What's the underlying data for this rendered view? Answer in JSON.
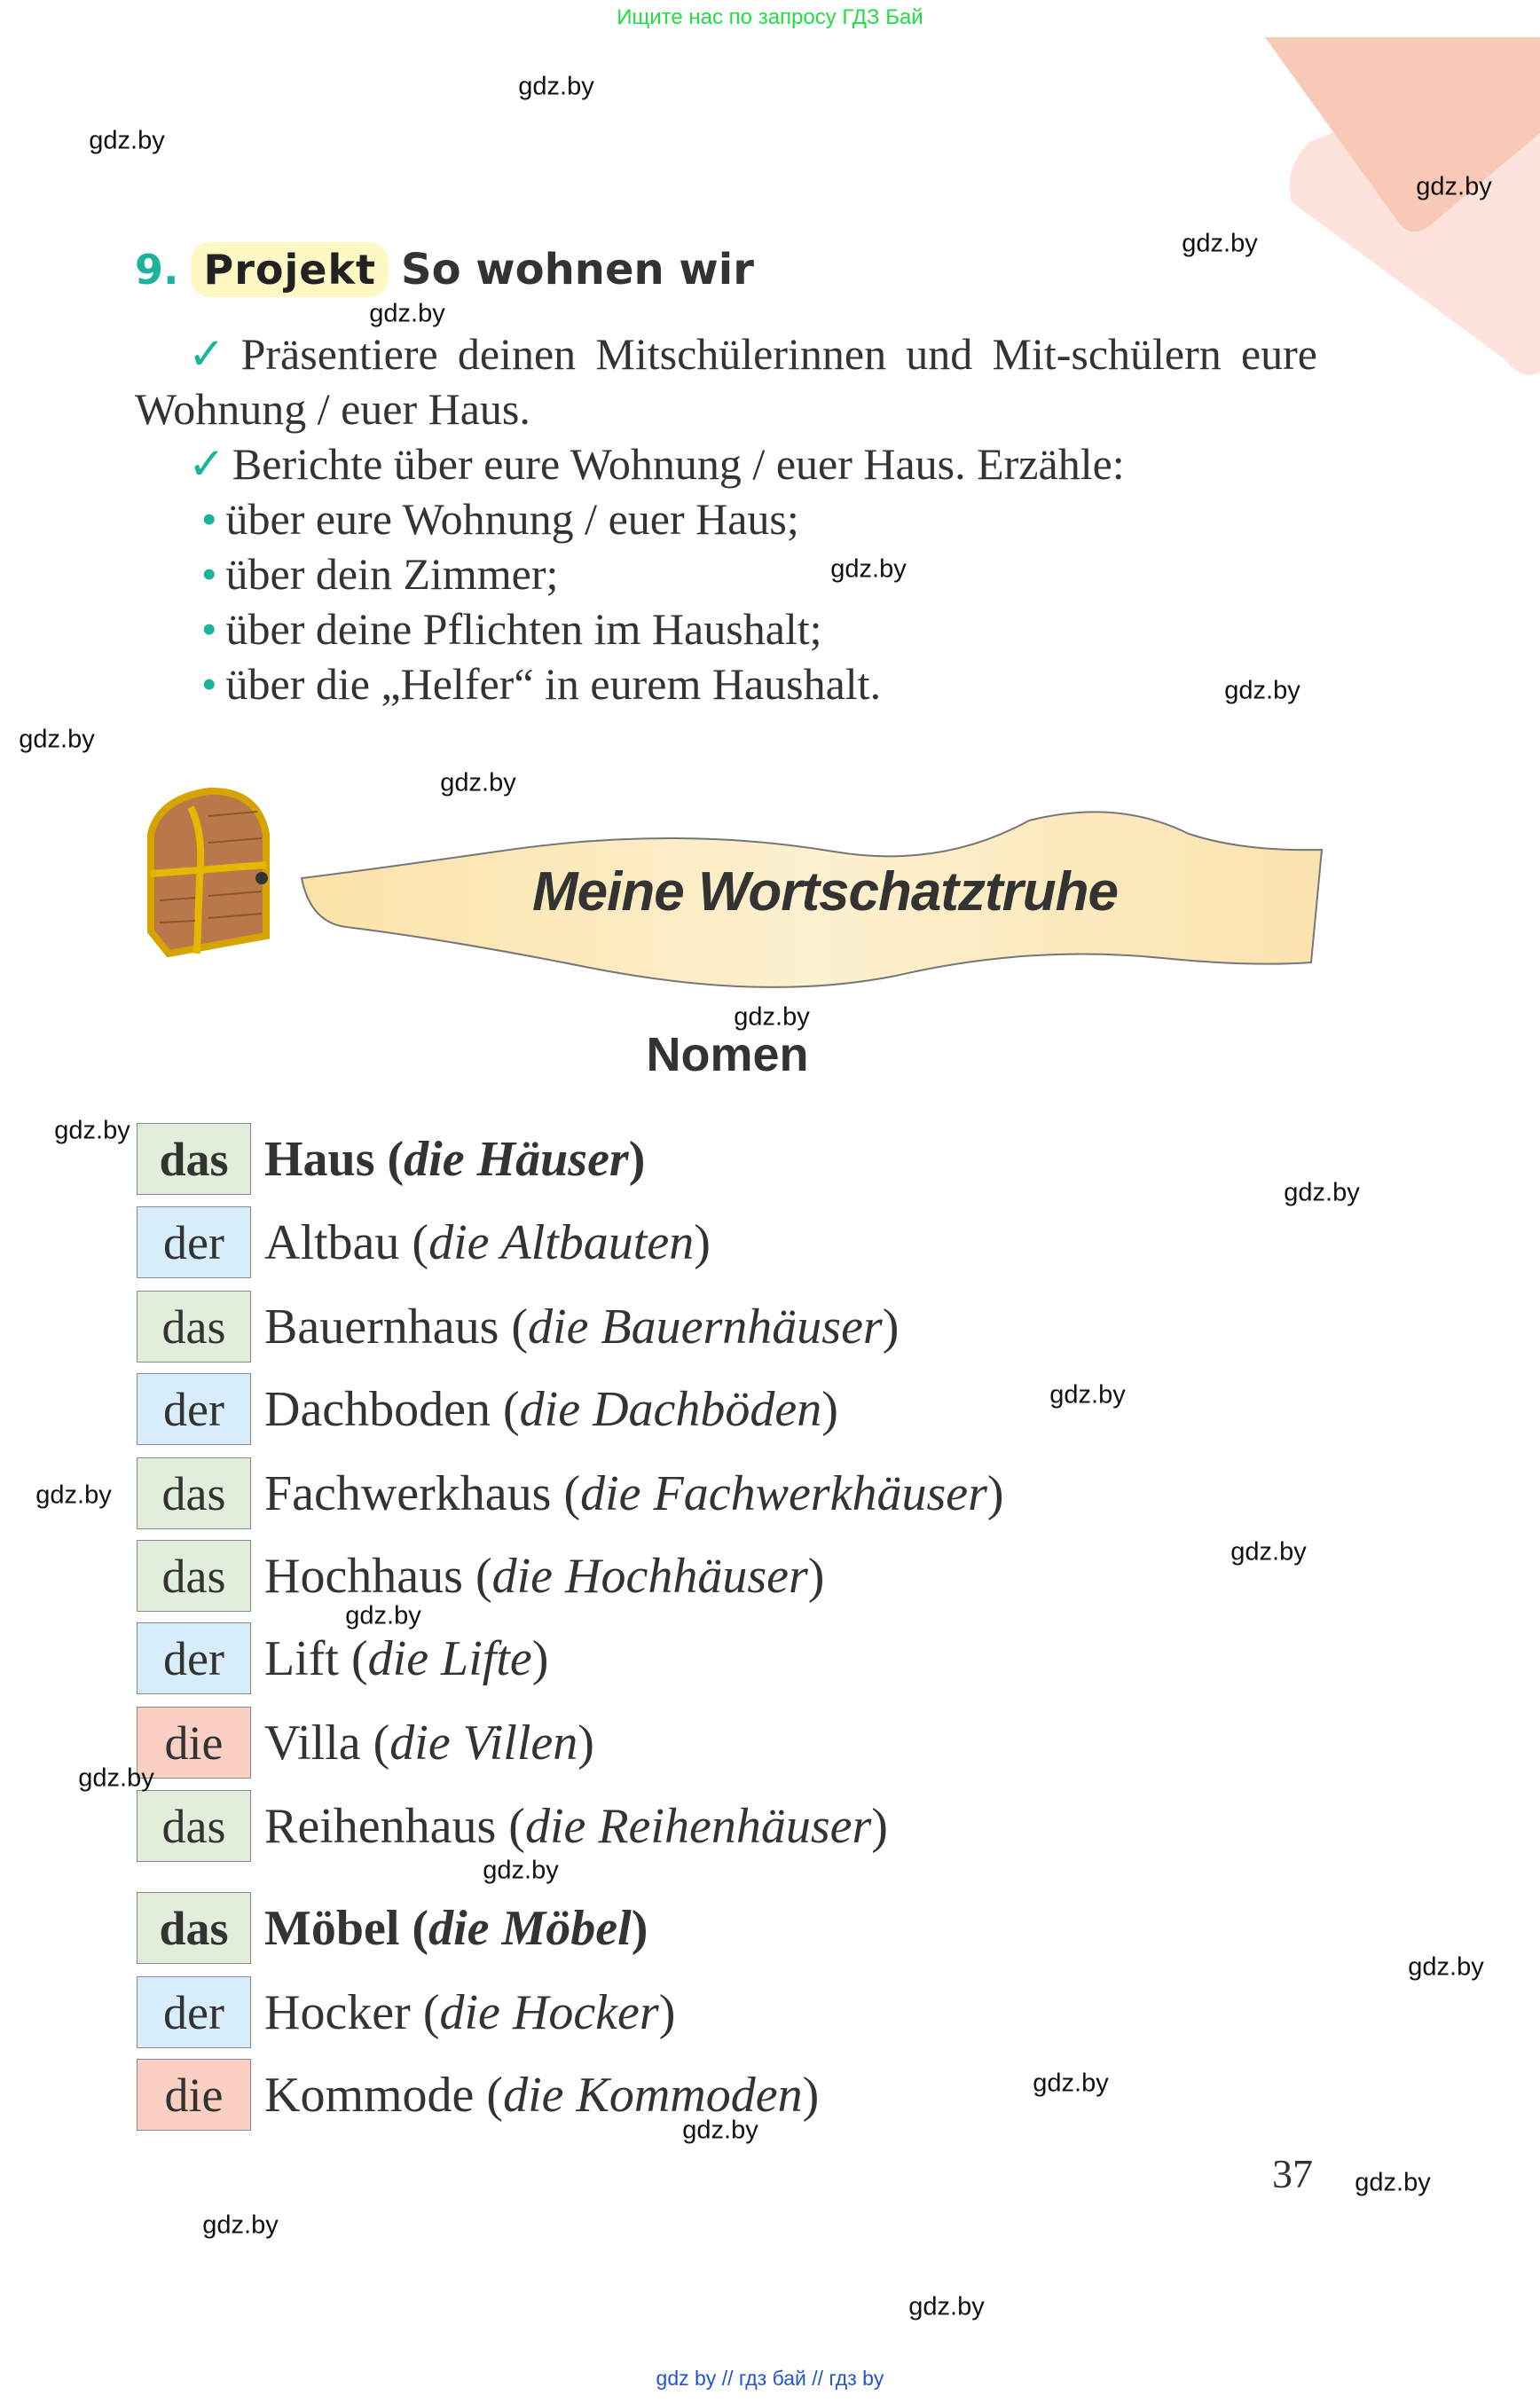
{
  "top_note": "Ищите нас по запросу ГДЗ Бай",
  "footer": "gdz by  //  гдз бай  //  гдз by",
  "watermark": "gdz.by",
  "watermark_count": 24,
  "task": {
    "number": "9.",
    "badge": "Projekt",
    "title": "So wohnen wir",
    "check_icon": "checkmark-icon",
    "paragraphs": [
      "Präsentiere deinen Mitschülerinnen und Mit-schülern eure Wohnung / euer Haus.",
      "Berichte über eure Wohnung / euer Haus. Erzähle:"
    ],
    "bullets": [
      "über eure Wohnung / euer Haus;",
      "über dein Zimmer;",
      "über deine Pflichten im Haushalt;",
      "über die „Helfer“ in eurem Haushalt."
    ]
  },
  "banner": {
    "title": "Meine Wortschatztruhe",
    "icon": "treasure-chest-icon"
  },
  "section_title": "Nomen",
  "colors": {
    "accent": "#1bb39a",
    "neuter": "#e1eed9",
    "masculine": "#d7edfa",
    "feminine": "#f9d0c2",
    "badge": "#fdf8c4"
  },
  "nouns": [
    {
      "article": "das",
      "gender": "n",
      "word": "Haus",
      "plural": "die Häuser",
      "bold": true
    },
    {
      "article": "der",
      "gender": "m",
      "word": "Altbau",
      "plural": "die Altbauten"
    },
    {
      "article": "das",
      "gender": "n",
      "word": "Bauernhaus",
      "plural": "die Bauernhäuser"
    },
    {
      "article": "der",
      "gender": "m",
      "word": "Dachboden",
      "plural": "die Dachböden"
    },
    {
      "article": "das",
      "gender": "n",
      "word": "Fachwerkhaus",
      "plural": "die Fachwerkhäuser"
    },
    {
      "article": "das",
      "gender": "n",
      "word": "Hochhaus",
      "plural": "die Hochhäuser"
    },
    {
      "article": "der",
      "gender": "m",
      "word": "Lift",
      "plural": "die Lifte"
    },
    {
      "article": "die",
      "gender": "f",
      "word": "Villa",
      "plural": "die Villen"
    },
    {
      "article": "das",
      "gender": "n",
      "word": "Reihenhaus",
      "plural": "die Reihenhäuser"
    },
    {
      "article": "das",
      "gender": "n",
      "word": "Möbel",
      "plural": "die Möbel",
      "bold": true
    },
    {
      "article": "der",
      "gender": "m",
      "word": "Hocker",
      "plural": "die Hocker"
    },
    {
      "article": "die",
      "gender": "f",
      "word": "Kommode",
      "plural": "die Kommoden"
    }
  ],
  "page_number": "37"
}
